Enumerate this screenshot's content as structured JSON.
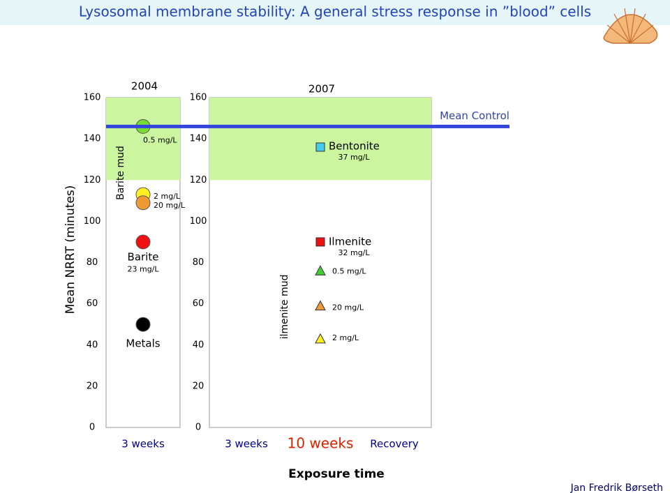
{
  "header": {
    "title": "Lysosomal membrane stability: A general stress response in ”blood” cells"
  },
  "y_label": "Mean NRRT (minutes)",
  "x_label": "Exposure time",
  "author": "Jan Fredrik Børseth",
  "mean_control": {
    "label": "Mean Control",
    "value": 146,
    "color": "#3344dd",
    "range": [
      120,
      160
    ],
    "range_color": "#ccf5a0"
  },
  "chart_data": [
    {
      "type": "scatter",
      "title": "2004",
      "categories": [
        "3 weeks"
      ],
      "ylim": [
        0,
        160
      ],
      "yticks": [
        0,
        20,
        40,
        60,
        80,
        100,
        120,
        140,
        160
      ],
      "grid": false,
      "bracket_label": "Barite mud",
      "series": [
        {
          "name": "0.5 mg/L",
          "color": "#77dd33",
          "marker": "circle",
          "values": [
            146
          ]
        },
        {
          "name": "2 mg/L",
          "color": "#ffee22",
          "marker": "circle",
          "values": [
            113
          ]
        },
        {
          "name": "20 mg/L",
          "color": "#ee9933",
          "marker": "circle",
          "values": [
            109
          ]
        },
        {
          "name": "Barite",
          "concentration": "23 mg/L",
          "color": "#ee1111",
          "marker": "circle",
          "values": [
            90
          ]
        },
        {
          "name": "Metals",
          "color": "#000000",
          "marker": "circle",
          "values": [
            50
          ]
        }
      ]
    },
    {
      "type": "scatter",
      "title": "2007",
      "categories": [
        "3 weeks",
        "10 weeks",
        "Recovery"
      ],
      "ylim": [
        0,
        160
      ],
      "yticks": [
        0,
        20,
        40,
        60,
        80,
        100,
        120,
        140,
        160
      ],
      "grid": false,
      "bracket_label": "ilmenite mud",
      "series": [
        {
          "name": "Bentonite",
          "concentration": "37 mg/L",
          "color": "#44ccee",
          "marker": "square",
          "values": [
            null,
            136,
            null
          ]
        },
        {
          "name": "Ilmenite",
          "concentration": "32 mg/L",
          "color": "#ee1111",
          "marker": "square",
          "values": [
            null,
            90,
            null
          ]
        },
        {
          "name": "0.5 mg/L",
          "color": "#44cc33",
          "marker": "triangle",
          "values": [
            null,
            76,
            null
          ]
        },
        {
          "name": "20 mg/L",
          "color": "#ee9933",
          "marker": "triangle",
          "values": [
            null,
            59,
            null
          ]
        },
        {
          "name": "2 mg/L",
          "color": "#ffee22",
          "marker": "triangle",
          "values": [
            null,
            43,
            null
          ]
        }
      ]
    }
  ]
}
